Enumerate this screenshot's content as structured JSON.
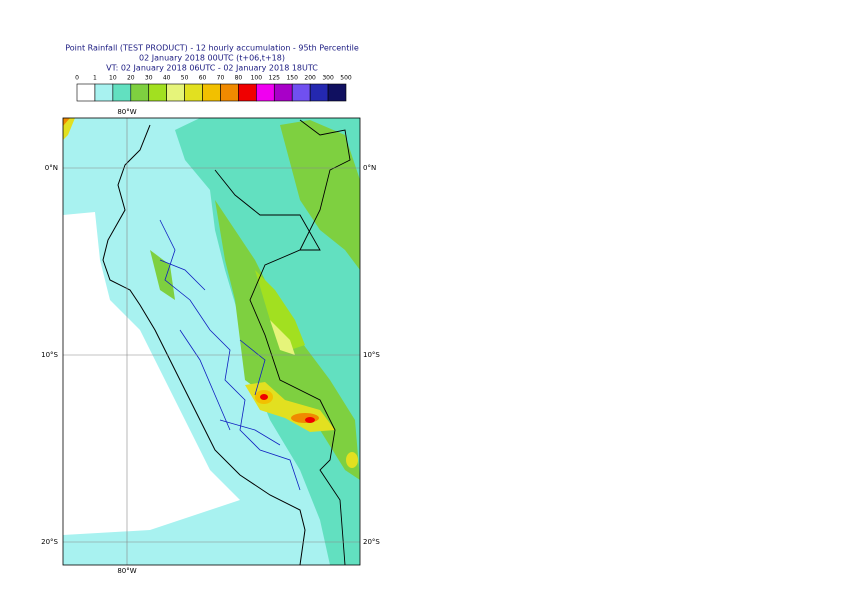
{
  "header": {
    "title": "Point Rainfall (TEST PRODUCT) - 12 hourly accumulation - 95th Percentile",
    "subtitle": "02 January 2018 00UTC (t+06,t+18)",
    "valid_time": "VT: 02 January 2018 06UTC - 02 January 2018 18UTC"
  },
  "legend": {
    "labels": [
      0,
      1,
      10,
      20,
      30,
      40,
      50,
      60,
      70,
      80,
      100,
      125,
      150,
      200,
      300,
      500
    ],
    "colors": [
      "#ffffff",
      "#a8f2f0",
      "#62e0c0",
      "#7ed040",
      "#a2e020",
      "#e6f47a",
      "#e2e020",
      "#f2c000",
      "#f08a00",
      "#f00000",
      "#f000f0",
      "#a800c8",
      "#7050f0",
      "#2428b0",
      "#101060"
    ]
  },
  "map": {
    "lon_labels": [
      "80°W",
      "80°W"
    ],
    "lat_labels": [
      "0°N",
      "0°N",
      "10°S",
      "10°S",
      "20°S",
      "20°S"
    ]
  }
}
